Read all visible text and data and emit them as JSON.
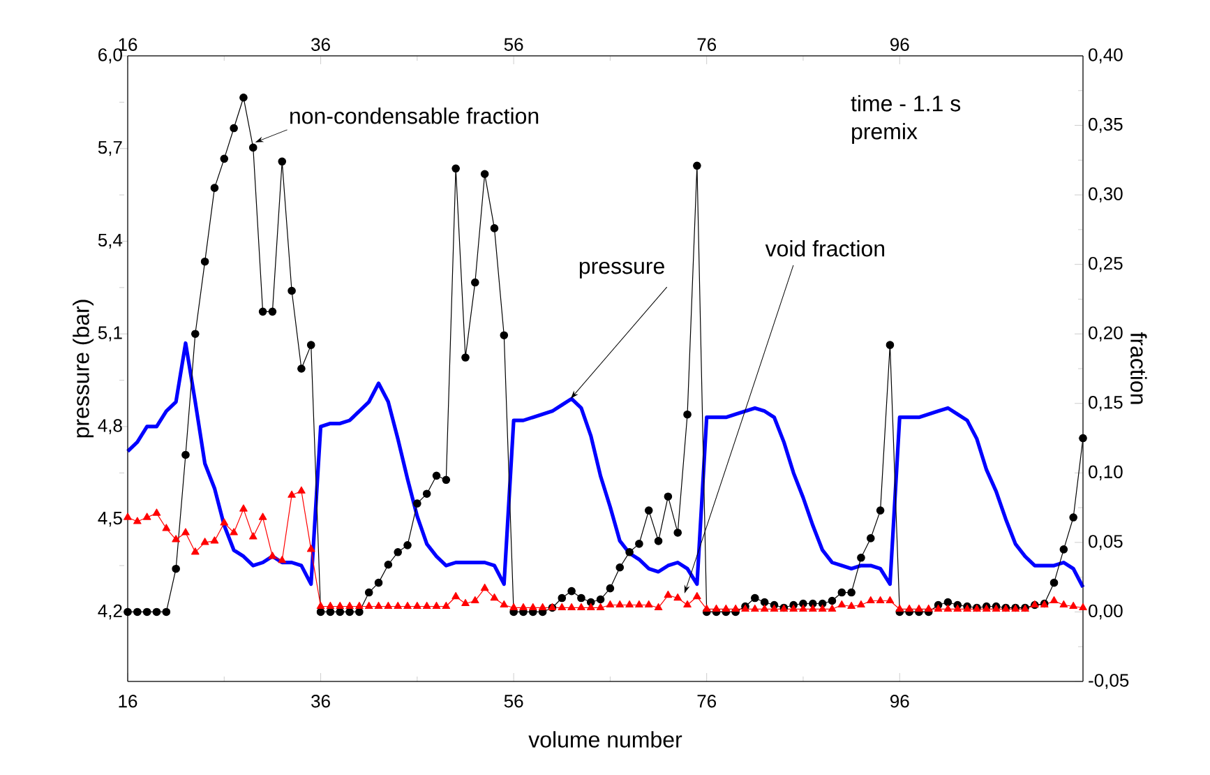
{
  "chart_data": {
    "type": "line",
    "xlabel": "volume number",
    "ylabel": "pressure (bar)",
    "y2label": "fraction",
    "x": [
      16,
      17,
      18,
      19,
      20,
      21,
      22,
      23,
      24,
      25,
      26,
      27,
      28,
      29,
      30,
      31,
      32,
      33,
      34,
      35,
      36,
      37,
      38,
      39,
      40,
      41,
      42,
      43,
      44,
      45,
      46,
      47,
      48,
      49,
      50,
      51,
      52,
      53,
      54,
      55,
      56,
      57,
      58,
      59,
      60,
      61,
      62,
      63,
      64,
      65,
      66,
      67,
      68,
      69,
      70,
      71,
      72,
      73,
      74,
      75,
      76,
      77,
      78,
      79,
      80,
      81,
      82,
      83,
      84,
      85,
      86,
      87,
      88,
      89,
      90,
      91,
      92,
      93,
      94,
      95,
      96,
      97,
      98,
      99,
      100,
      101,
      102,
      103,
      104,
      105,
      106,
      107,
      108,
      109,
      110,
      111,
      112,
      113,
      114,
      115
    ],
    "series": [
      {
        "color": "#0000ff",
        "marker": "none",
        "values": [
          4.72,
          4.75,
          4.8,
          4.8,
          4.85,
          4.88,
          5.07,
          4.88,
          4.68,
          4.6,
          4.48,
          4.4,
          4.38,
          4.35,
          4.36,
          4.38,
          4.36,
          4.36,
          4.35,
          4.29,
          4.8,
          4.81,
          4.81,
          4.82,
          4.85,
          4.88,
          4.94,
          4.88,
          4.76,
          4.63,
          4.51,
          4.42,
          4.38,
          4.35,
          4.36,
          4.36,
          4.36,
          4.36,
          4.35,
          4.29,
          4.82,
          4.82,
          4.83,
          4.84,
          4.85,
          4.87,
          4.89,
          4.86,
          4.77,
          4.64,
          4.54,
          4.43,
          4.39,
          4.37,
          4.34,
          4.33,
          4.35,
          4.36,
          4.34,
          4.29,
          4.83,
          4.83,
          4.83,
          4.84,
          4.85,
          4.86,
          4.85,
          4.83,
          4.75,
          4.65,
          4.57,
          4.48,
          4.4,
          4.36,
          4.35,
          4.34,
          4.35,
          4.35,
          4.34,
          4.29,
          4.83,
          4.83,
          4.83,
          4.84,
          4.85,
          4.86,
          4.84,
          4.82,
          4.76,
          4.66,
          4.59,
          4.5,
          4.42,
          4.38,
          4.35,
          4.35,
          4.35,
          4.36,
          4.34,
          4.28
        ]
      },
      {
        "color": "#000000",
        "marker": "circle",
        "axis": "y2",
        "values": [
          0,
          0,
          0,
          0,
          0,
          0.031,
          0.113,
          0.2,
          0.252,
          0.305,
          0.326,
          0.348,
          0.37,
          0.334,
          0.216,
          0.216,
          0.324,
          0.231,
          0.175,
          0.192,
          0,
          0,
          0,
          0,
          0,
          0.014,
          0.021,
          0.034,
          0.043,
          0.048,
          0.078,
          0.085,
          0.098,
          0.095,
          0.319,
          0.183,
          0.237,
          0.315,
          0.276,
          0.199,
          0,
          0,
          0,
          0,
          0.003,
          0.01,
          0.015,
          0.01,
          0.007,
          0.009,
          0.017,
          0.032,
          0.043,
          0.049,
          0.073,
          0.051,
          0.083,
          0.057,
          0.142,
          0.321,
          0,
          0,
          0,
          0,
          0.004,
          0.01,
          0.007,
          0.005,
          0.003,
          0.005,
          0.006,
          0.006,
          0.006,
          0.008,
          0.014,
          0.014,
          0.039,
          0.053,
          0.073,
          0.192,
          0,
          0,
          0,
          0,
          0.005,
          0.007,
          0.005,
          0.004,
          0.003,
          0.004,
          0.004,
          0.003,
          0.003,
          0.003,
          0.005,
          0.006,
          0.021,
          0.045,
          0.068,
          0.125
        ]
      },
      {
        "color": "#ff0000",
        "marker": "triangle",
        "axis": "y2",
        "values": [
          0.068,
          0.065,
          0.068,
          0.071,
          0.06,
          0.052,
          0.057,
          0.043,
          0.05,
          0.051,
          0.064,
          0.057,
          0.074,
          0.054,
          0.068,
          0.04,
          0.037,
          0.084,
          0.087,
          0.045,
          0.004,
          0.004,
          0.004,
          0.004,
          0.004,
          0.004,
          0.004,
          0.004,
          0.004,
          0.004,
          0.004,
          0.004,
          0.004,
          0.004,
          0.011,
          0.006,
          0.008,
          0.017,
          0.01,
          0.005,
          0.003,
          0.003,
          0.003,
          0.003,
          0.003,
          0.003,
          0.003,
          0.003,
          0.003,
          0.003,
          0.005,
          0.005,
          0.005,
          0.005,
          0.005,
          0.003,
          0.012,
          0.01,
          0.005,
          0.011,
          0.002,
          0.002,
          0.002,
          0.002,
          0.002,
          0.002,
          0.002,
          0.002,
          0.002,
          0.002,
          0.002,
          0.002,
          0.002,
          0.002,
          0.005,
          0.004,
          0.005,
          0.008,
          0.008,
          0.008,
          0.002,
          0.002,
          0.002,
          0.002,
          0.002,
          0.002,
          0.002,
          0.002,
          0.002,
          0.002,
          0.002,
          0.002,
          0.002,
          0.002,
          0.005,
          0.005,
          0.008,
          0.005,
          0.004,
          0.003
        ]
      }
    ],
    "xlim": [
      16,
      115
    ],
    "xticks": [
      16,
      36,
      56,
      76,
      96
    ],
    "x2lim": [
      16,
      115
    ],
    "x2ticks": [
      16,
      36,
      56,
      76,
      96
    ],
    "ylim": [
      3.975,
      6.0
    ],
    "yticks": [
      {
        "value": 4.2,
        "label": "4,2"
      },
      {
        "value": 4.5,
        "label": "4,5"
      },
      {
        "value": 4.8,
        "label": "4,8"
      },
      {
        "value": 5.1,
        "label": "5,1"
      },
      {
        "value": 5.4,
        "label": "5,4"
      },
      {
        "value": 5.7,
        "label": "5,7"
      },
      {
        "value": 6.0,
        "label": "6,0"
      }
    ],
    "y2lim": [
      -0.05,
      0.4
    ],
    "y2ticks": [
      {
        "value": -0.05,
        "label": "-0,05"
      },
      {
        "value": 0,
        "label": "0,00"
      },
      {
        "value": 0.05,
        "label": "0,05"
      },
      {
        "value": 0.1,
        "label": "0,10"
      },
      {
        "value": 0.15,
        "label": "0,15"
      },
      {
        "value": 0.2,
        "label": "0,20"
      },
      {
        "value": 0.25,
        "label": "0,25"
      },
      {
        "value": 0.3,
        "label": "0,30"
      },
      {
        "value": 0.35,
        "label": "0,35"
      },
      {
        "value": 0.4,
        "label": "0,40"
      }
    ],
    "annotations": [
      {
        "text": "non-condensable fraction",
        "x": 29.2,
        "y": 5.72
      },
      {
        "text": "pressure",
        "x": 61.9,
        "y": 4.89
      },
      {
        "text": "void fraction",
        "x": 73.7,
        "y": 4.26
      },
      "time - 1.1 s",
      "premix"
    ],
    "grid": false
  }
}
